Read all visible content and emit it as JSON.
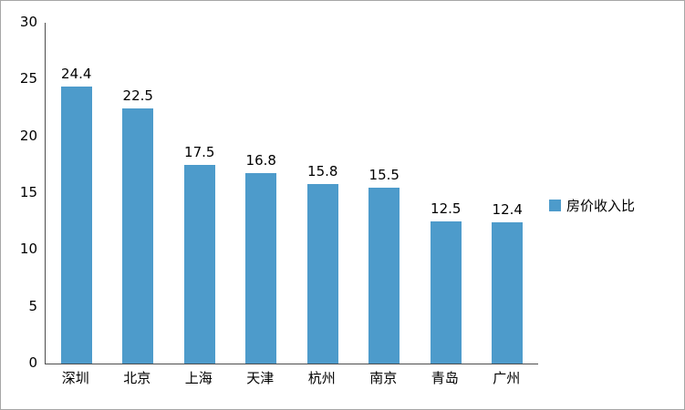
{
  "chart_data": {
    "type": "bar",
    "title": "",
    "categories": [
      "深圳",
      "北京",
      "上海",
      "天津",
      "杭州",
      "南京",
      "青岛",
      "广州"
    ],
    "values": [
      24.4,
      22.5,
      17.5,
      16.8,
      15.8,
      15.5,
      12.5,
      12.4
    ],
    "value_labels": [
      "24.4",
      "22.5",
      "17.5",
      "16.8",
      "15.8",
      "15.5",
      "12.5",
      "12.4"
    ],
    "legend": "房价收入比",
    "legend_position": "right",
    "ylim": [
      0,
      30
    ],
    "ytick_step": 5,
    "yticks": [
      "30",
      "25",
      "20",
      "15",
      "10",
      "5",
      "0"
    ],
    "grid": false,
    "bar_color": "#4d9bcb"
  }
}
